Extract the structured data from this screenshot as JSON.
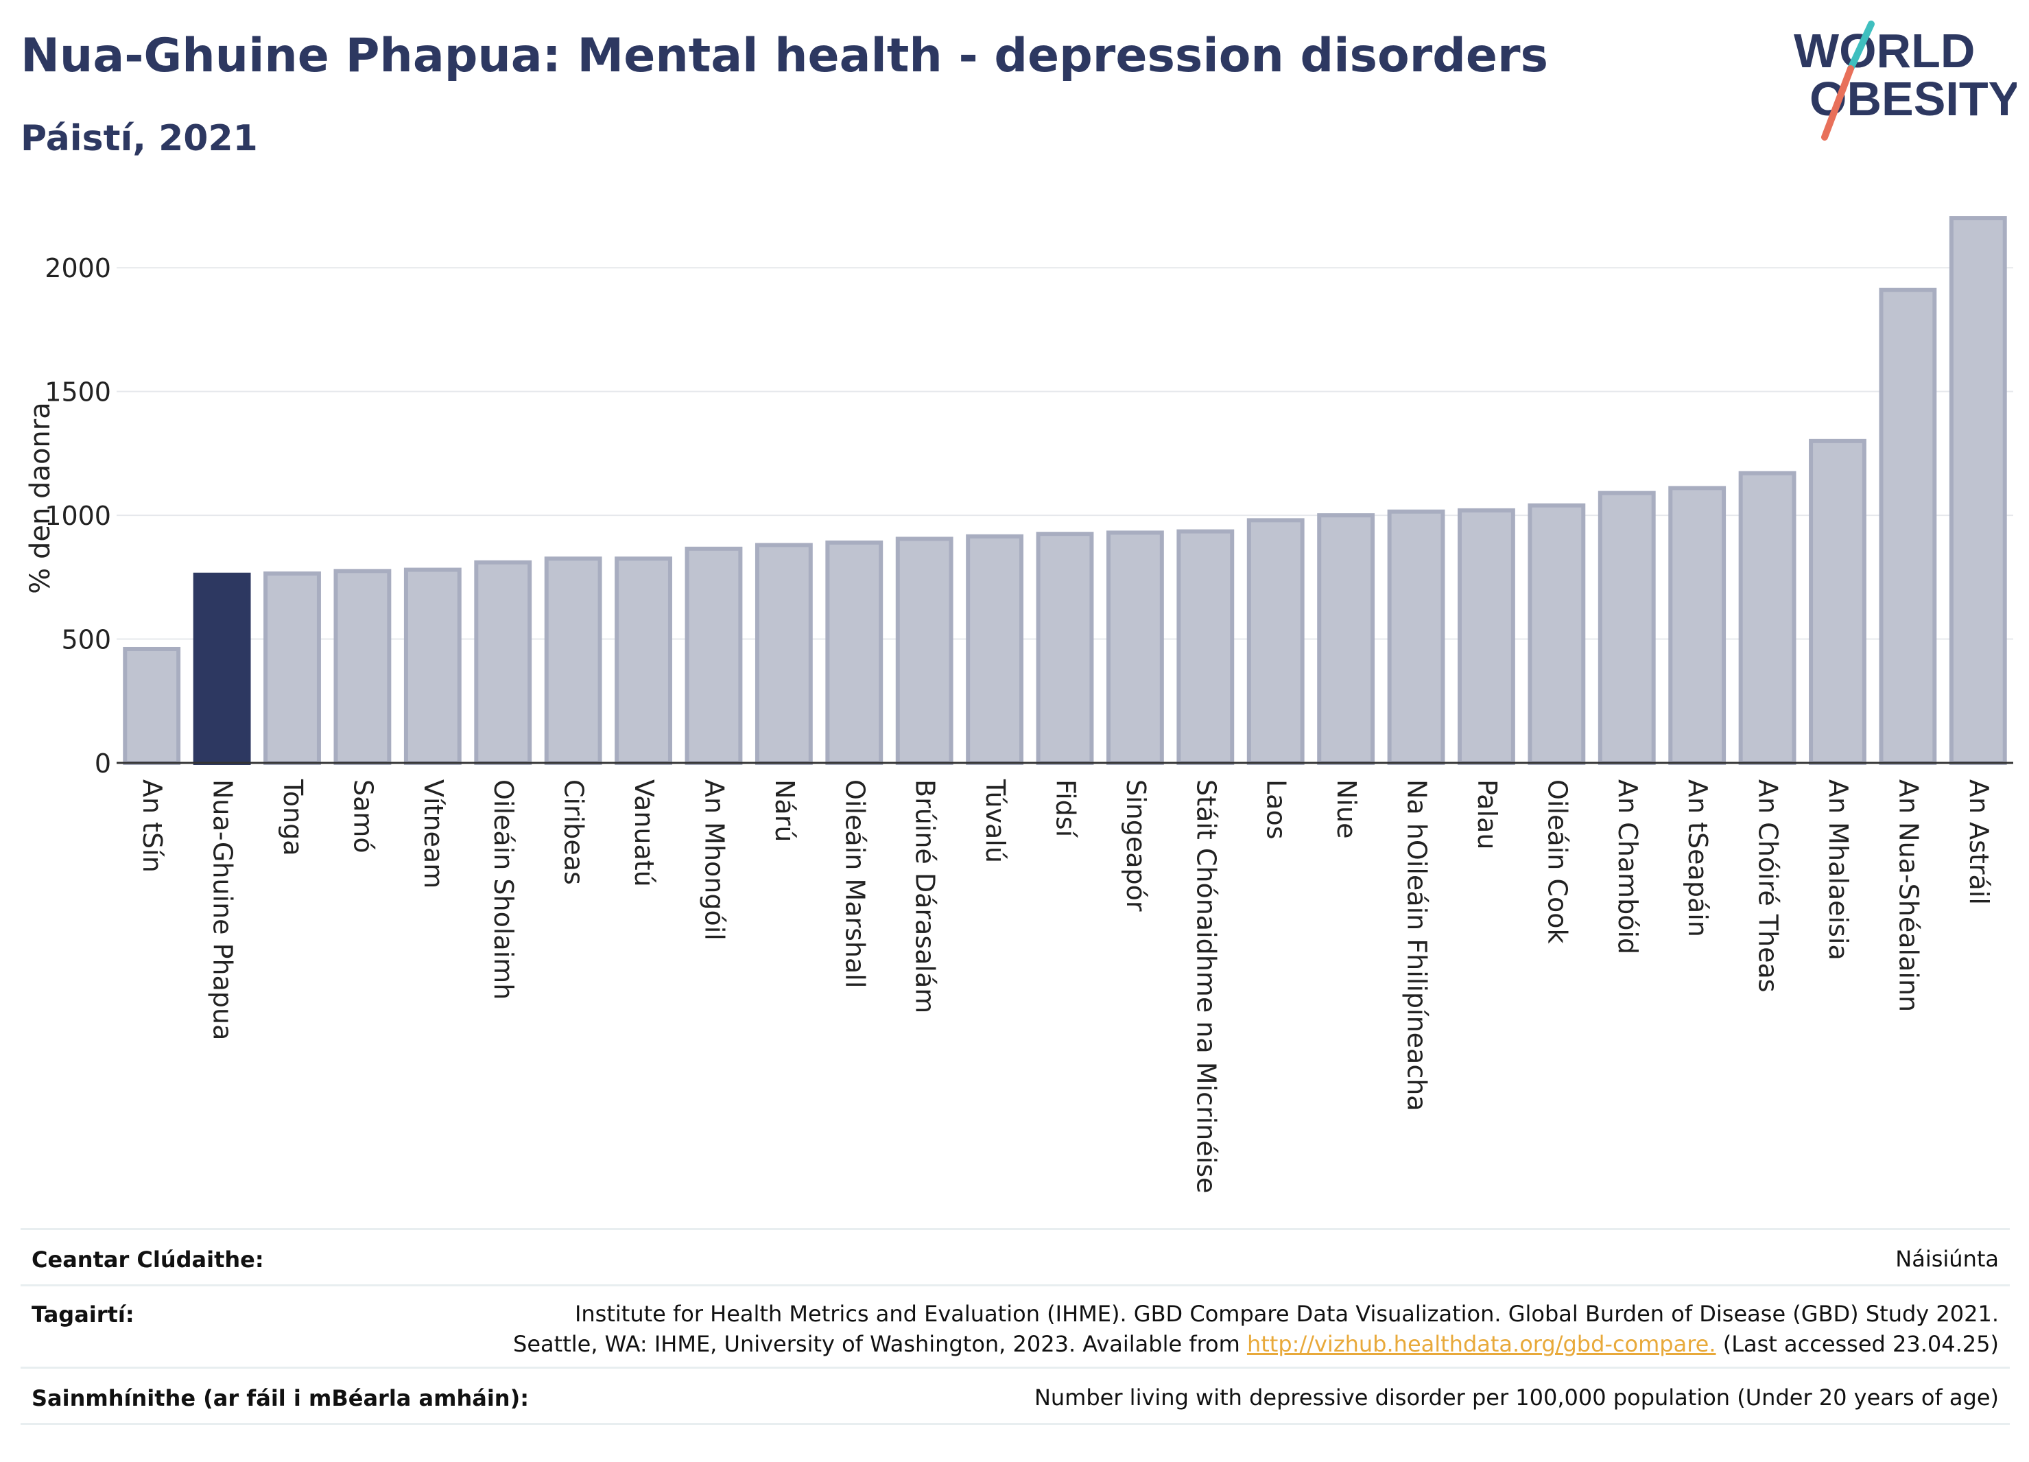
{
  "header": {
    "title": "Nua-Ghuine Phapua: Mental health - depression disorders",
    "subtitle": "Páistí, 2021",
    "logo_line1": "WORLD",
    "logo_line2": "OBESITY"
  },
  "colors": {
    "bar": "#bfc3d0",
    "bar_stroke": "#a8adc0",
    "highlight": "#2d3861",
    "text": "#2d3861",
    "grid": "#e6e8ec",
    "logo_teal": "#3fbfbf",
    "logo_red": "#e8705a",
    "link": "#e8a93a"
  },
  "chart_data": {
    "type": "bar",
    "title": "Nua-Ghuine Phapua: Mental health - depression disorders",
    "subtitle": "Páistí, 2021",
    "ylabel": "% den daonra",
    "xlabel": "",
    "ylim": [
      0,
      2250
    ],
    "yticks": [
      0,
      500,
      1000,
      1500,
      2000
    ],
    "grid": true,
    "highlight_category": "Nua-Ghuine Phapua",
    "categories": [
      "An tSín",
      "Nua-Ghuine Phapua",
      "Tonga",
      "Samó",
      "Vítneam",
      "Oileáin Sholaimh",
      "Ciribeas",
      "Vanuatú",
      "An Mhongóil",
      "Nárú",
      "Oileáin Marshall",
      "Brúiné Dárasalám",
      "Túvalú",
      "Fidsí",
      "Singeapór",
      "Stáit Chónaidhme na Micrinéise",
      "Laos",
      "Niue",
      "Na hOileáin Fhilipíneacha",
      "Palau",
      "Oileáin Cook",
      "An Chambóid",
      "An tSeapáin",
      "An Chóiré Theas",
      "An Mhalaeisia",
      "An Nua-Shéalainn",
      "An Astráil"
    ],
    "values": [
      460,
      760,
      765,
      775,
      780,
      810,
      825,
      825,
      865,
      880,
      890,
      905,
      915,
      925,
      930,
      935,
      980,
      1000,
      1015,
      1020,
      1040,
      1090,
      1110,
      1170,
      1300,
      1910,
      2200
    ]
  },
  "footer": {
    "coverage_label": "Ceantar Clúdaithe:",
    "coverage_value": "Náisiúnta",
    "references_label": "Tagairtí:",
    "references_line1": "Institute for Health Metrics and Evaluation (IHME). GBD Compare Data Visualization. Global Burden of Disease (GBD) Study 2021.",
    "references_line2_pre": "Seattle, WA: IHME, University of Washington, 2023. Available from ",
    "references_link": "http://vizhub.healthdata.org/gbd-compare.",
    "references_line2_post": " (Last accessed 23.04.25)",
    "definitions_label": "Sainmhínithe (ar fáil i mBéarla amháin):",
    "definitions_value": "Number living with depressive disorder per 100,000 population (Under 20 years of age)"
  }
}
